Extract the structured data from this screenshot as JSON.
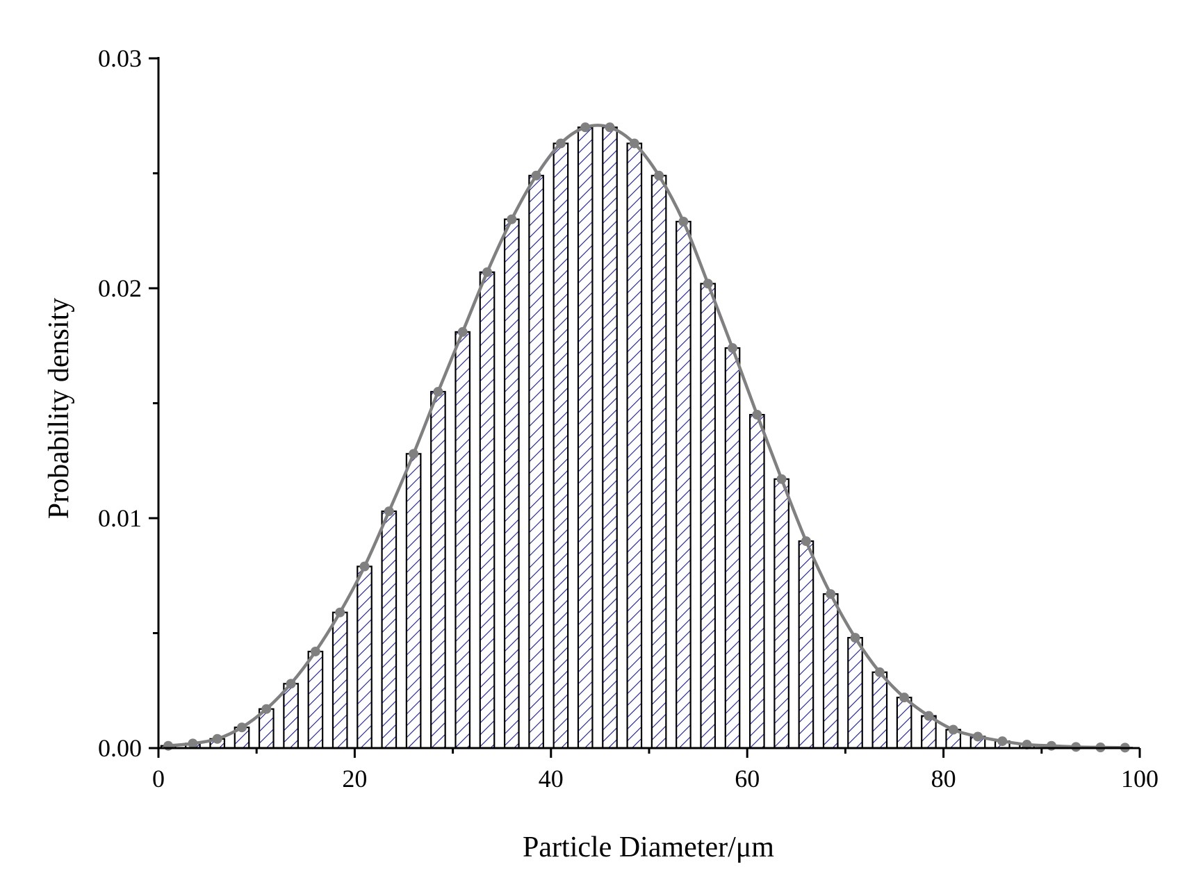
{
  "chart_data": {
    "type": "bar",
    "title": "",
    "xlabel": "Particle Diameter/μm",
    "ylabel": "Probability density",
    "xlim": [
      0,
      100
    ],
    "ylim": [
      0,
      0.03
    ],
    "x_ticks": [
      {
        "value": 0,
        "label": "0"
      },
      {
        "value": 20,
        "label": "20"
      },
      {
        "value": 40,
        "label": "40"
      },
      {
        "value": 60,
        "label": "60"
      },
      {
        "value": 80,
        "label": "80"
      },
      {
        "value": 100,
        "label": "100"
      }
    ],
    "y_ticks": [
      {
        "value": 0,
        "label": "0.00"
      },
      {
        "value": 0.01,
        "label": "0.01"
      },
      {
        "value": 0.02,
        "label": "0.02"
      },
      {
        "value": 0.03,
        "label": "0.03"
      }
    ],
    "grid": false,
    "bar_fill": "diagonal-hatch",
    "colors": {
      "bar_outline": "#000000",
      "hatch": "#1a1a8c",
      "curve": "#808080",
      "marker": "#808080"
    },
    "series": [
      {
        "type": "bar",
        "x": [
          1.0,
          3.5,
          6.0,
          8.5,
          11.0,
          13.5,
          16.0,
          18.5,
          21.0,
          23.5,
          26.0,
          28.5,
          31.0,
          33.5,
          36.0,
          38.5,
          41.0,
          43.5,
          46.0,
          48.5,
          51.0,
          53.5,
          56.0,
          58.5,
          61.0,
          63.5,
          66.0,
          68.5,
          71.0,
          73.5,
          76.0,
          78.5,
          81.0,
          83.5,
          86.0,
          88.5,
          91.0,
          93.5,
          96.0,
          98.5
        ],
        "values": [
          0.0001,
          0.0002,
          0.0004,
          0.0009,
          0.0017,
          0.0028,
          0.0042,
          0.0059,
          0.0079,
          0.0103,
          0.0128,
          0.0155,
          0.0181,
          0.0207,
          0.023,
          0.0249,
          0.0263,
          0.027,
          0.027,
          0.0263,
          0.0249,
          0.0229,
          0.0202,
          0.0174,
          0.0145,
          0.0117,
          0.009,
          0.0067,
          0.0048,
          0.0033,
          0.0022,
          0.0014,
          0.0008,
          0.0005,
          0.0003,
          0.00015,
          0.0001,
          5e-05,
          3e-05,
          2e-05
        ]
      },
      {
        "type": "line",
        "markers": true,
        "x": [
          1.0,
          3.5,
          6.0,
          8.5,
          11.0,
          13.5,
          16.0,
          18.5,
          21.0,
          23.5,
          26.0,
          28.5,
          31.0,
          33.5,
          36.0,
          38.5,
          41.0,
          43.5,
          46.0,
          48.5,
          51.0,
          53.5,
          56.0,
          58.5,
          61.0,
          63.5,
          66.0,
          68.5,
          71.0,
          73.5,
          76.0,
          78.5,
          81.0,
          83.5,
          86.0,
          88.5,
          91.0,
          93.5,
          96.0,
          98.5
        ],
        "values": [
          0.0001,
          0.0002,
          0.0004,
          0.0009,
          0.0017,
          0.0028,
          0.0042,
          0.0059,
          0.0079,
          0.0103,
          0.0128,
          0.0155,
          0.0181,
          0.0207,
          0.023,
          0.0249,
          0.0263,
          0.027,
          0.027,
          0.0263,
          0.0249,
          0.0229,
          0.0202,
          0.0174,
          0.0145,
          0.0117,
          0.009,
          0.0067,
          0.0048,
          0.0033,
          0.0022,
          0.0014,
          0.0008,
          0.0005,
          0.0003,
          0.00015,
          0.0001,
          5e-05,
          3e-05,
          2e-05
        ]
      }
    ]
  }
}
